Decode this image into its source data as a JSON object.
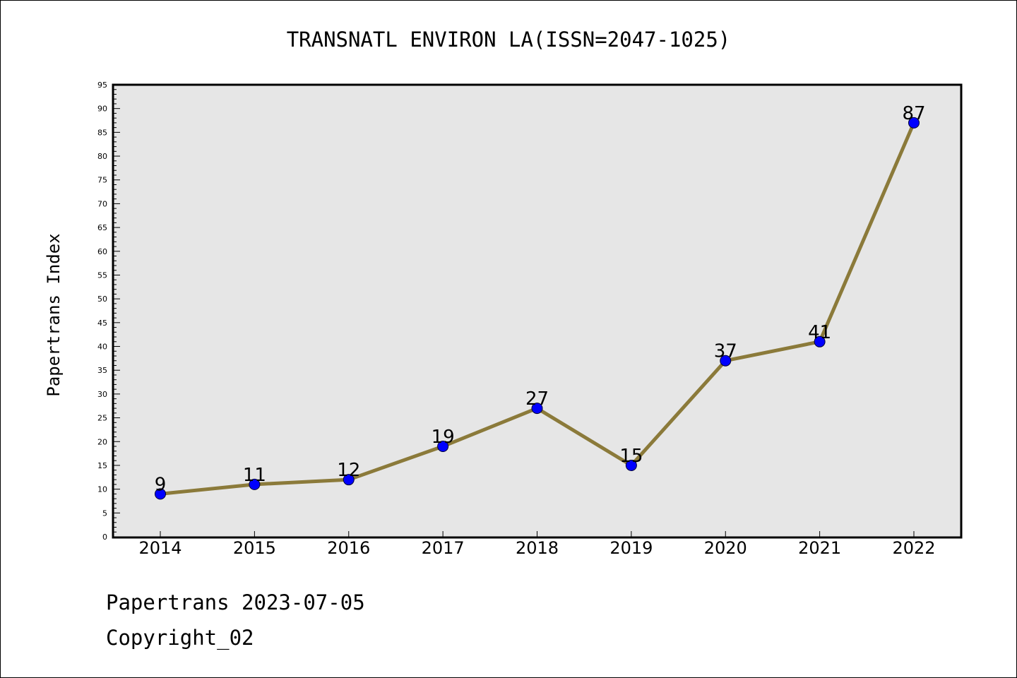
{
  "chart_data": {
    "type": "line",
    "title": "TRANSNATL ENVIRON LA(ISSN=2047-1025)",
    "xlabel": "",
    "ylabel": "Papertrans Index",
    "categories": [
      "2014",
      "2015",
      "2016",
      "2017",
      "2018",
      "2019",
      "2020",
      "2021",
      "2022"
    ],
    "series": [
      {
        "values": [
          9,
          11,
          12,
          19,
          27,
          15,
          37,
          41,
          87
        ]
      }
    ],
    "ylim": [
      0,
      95
    ],
    "ytick_step": 5,
    "grid": false,
    "data_labels": true,
    "colors": {
      "line": "#8b7a3a",
      "marker": "#0000ff",
      "plot_bg": "#e6e6e6"
    }
  },
  "footer": {
    "line1": "Papertrans 2023-07-05",
    "line2": "Copyright_02"
  }
}
